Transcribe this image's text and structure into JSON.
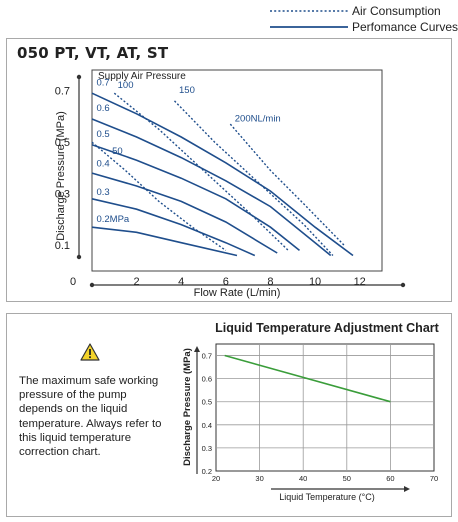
{
  "legend": {
    "air_consumption": "Air Consumption",
    "performance_curves": "Perfomance Curves"
  },
  "panel1": {
    "title": "050 PT, VT, AT, ST"
  },
  "panel2": {
    "warning_text": "The maximum safe working pressure of the pump depends on the liquid temperature. Always refer to this liquid temperature correction chart."
  },
  "colors": {
    "curve": "#1f4e8c",
    "temp_line": "#3a9d3a",
    "grid": "#9a9a9a",
    "warning_fill": "#f3d32a"
  },
  "chart_data": [
    {
      "type": "line",
      "title": "",
      "xlabel": "Flow Rate (L/min)",
      "ylabel": "Discharge Pressure (MPa)",
      "xlim": [
        0,
        13
      ],
      "ylim": [
        0,
        0.78
      ],
      "x_ticks": [
        "0",
        "2",
        "4",
        "6",
        "8",
        "10",
        "12"
      ],
      "y_ticks": [
        "0.1",
        "0.3",
        "0.5",
        "0.7"
      ],
      "grid": false,
      "legend_title": "Supply Air Pressure",
      "series": [
        {
          "name": "0.7",
          "kind": "performance",
          "x": [
            0,
            2,
            4,
            6,
            8,
            10,
            11.7
          ],
          "y": [
            0.69,
            0.61,
            0.52,
            0.42,
            0.31,
            0.17,
            0.06
          ]
        },
        {
          "name": "0.6",
          "kind": "performance",
          "x": [
            0,
            2,
            4,
            6,
            8,
            10,
            10.7
          ],
          "y": [
            0.59,
            0.52,
            0.44,
            0.35,
            0.25,
            0.11,
            0.06
          ]
        },
        {
          "name": "0.5",
          "kind": "performance",
          "x": [
            0,
            2,
            4,
            6,
            8,
            9.3
          ],
          "y": [
            0.49,
            0.43,
            0.36,
            0.28,
            0.17,
            0.08
          ]
        },
        {
          "name": "0.4",
          "kind": "performance",
          "x": [
            0,
            2,
            4,
            6,
            8.3
          ],
          "y": [
            0.38,
            0.33,
            0.27,
            0.19,
            0.07
          ]
        },
        {
          "name": "0.3",
          "kind": "performance",
          "x": [
            0,
            2,
            4,
            6,
            7.3
          ],
          "y": [
            0.28,
            0.24,
            0.18,
            0.11,
            0.06
          ]
        },
        {
          "name": "0.2MPa",
          "kind": "performance",
          "x": [
            0,
            2,
            4,
            6.5
          ],
          "y": [
            0.17,
            0.15,
            0.11,
            0.06
          ]
        },
        {
          "name": "50",
          "kind": "air",
          "x": [
            0,
            1.5,
            3,
            4.5,
            6
          ],
          "y": [
            0.5,
            0.39,
            0.27,
            0.17,
            0.08
          ]
        },
        {
          "name": "100",
          "kind": "air",
          "x": [
            1,
            3,
            5,
            7,
            8.8
          ],
          "y": [
            0.69,
            0.55,
            0.39,
            0.23,
            0.08
          ]
        },
        {
          "name": "150",
          "kind": "air",
          "x": [
            3.7,
            5.5,
            7.5,
            9.5,
            10.8
          ],
          "y": [
            0.66,
            0.5,
            0.34,
            0.18,
            0.06
          ]
        },
        {
          "name": "200NL/min",
          "kind": "air",
          "x": [
            6.2,
            8,
            9.5,
            11.3
          ],
          "y": [
            0.57,
            0.39,
            0.26,
            0.1
          ]
        }
      ]
    },
    {
      "type": "line",
      "title": "Liquid Temperature Adjustment Chart",
      "xlabel": "Liquid Temperature (°C)",
      "ylabel": "Discharge Pressure (MPa)",
      "xlim": [
        20,
        70
      ],
      "ylim": [
        0.2,
        0.75
      ],
      "x_ticks": [
        "20",
        "30",
        "40",
        "50",
        "60",
        "70"
      ],
      "y_ticks": [
        "0.2",
        "0.3",
        "0.4",
        "0.5",
        "0.6",
        "0.7"
      ],
      "grid": true,
      "series": [
        {
          "x": [
            22,
            60
          ],
          "y": [
            0.7,
            0.5
          ]
        }
      ]
    }
  ]
}
